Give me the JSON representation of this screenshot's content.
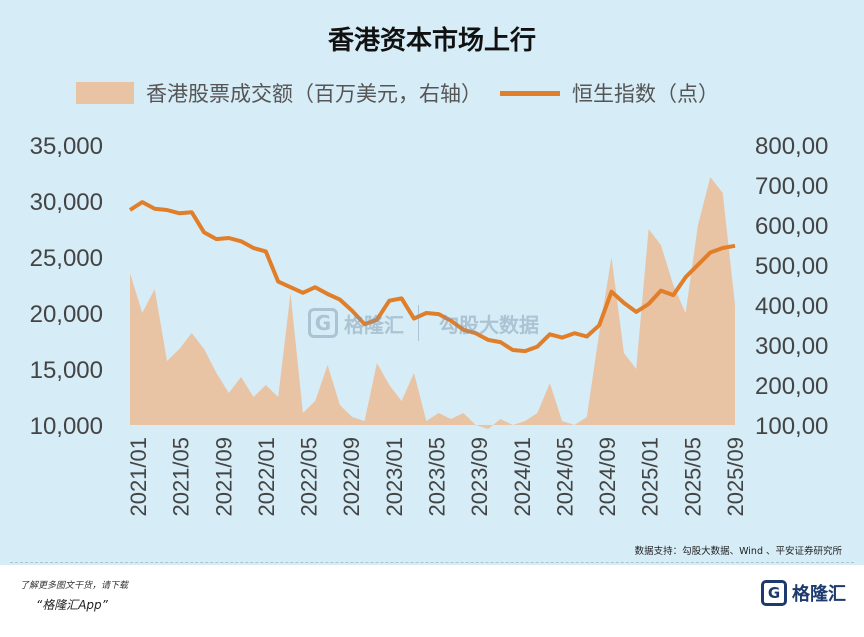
{
  "chart_data": {
    "type": "area+line",
    "title": "香港资本市场上行",
    "source": "数据支持：勾股大数据、Wind 、平安证券研究所",
    "legend_position": "top",
    "grid": false,
    "x_labels": [
      "2021/01",
      "2021/05",
      "2021/09",
      "2022/01",
      "2022/05",
      "2022/09",
      "2023/01",
      "2023/05",
      "2023/09",
      "2024/01",
      "2024/05",
      "2024/09",
      "2025/01",
      "2025/05",
      "2025/09"
    ],
    "left_axis": {
      "ticks": [
        "10,000",
        "15,000",
        "20,000",
        "25,000",
        "30,000",
        "35,000"
      ],
      "ylim": [
        10000,
        35000
      ]
    },
    "right_axis": {
      "ticks": [
        "100,00",
        "200,00",
        "300,00",
        "400,00",
        "500,00",
        "600,00",
        "700,00",
        "800,00"
      ],
      "ylim": [
        100000,
        800000
      ]
    },
    "series": [
      {
        "name": "香港股票成交额（百万美元，右轴）",
        "type": "area",
        "axis": "right",
        "color": "#e8c4a4",
        "values": [
          480000,
          380000,
          440000,
          260000,
          290000,
          330000,
          290000,
          230000,
          180000,
          220000,
          170000,
          200000,
          170000,
          430000,
          130000,
          160000,
          250000,
          150000,
          120000,
          110000,
          255000,
          200000,
          160000,
          230000,
          110000,
          130000,
          115000,
          130000,
          100000,
          90000,
          115000,
          100000,
          110000,
          130000,
          205000,
          110000,
          100000,
          120000,
          330000,
          520000,
          280000,
          240000,
          590000,
          550000,
          450000,
          380000,
          600000,
          720000,
          680000,
          400000
        ]
      },
      {
        "name": "恒生指数（点）",
        "type": "line",
        "axis": "left",
        "color": "#e07e2a",
        "values": [
          29200,
          29900,
          29300,
          29200,
          28900,
          29000,
          27200,
          26600,
          26700,
          26400,
          25800,
          25500,
          22800,
          22300,
          21800,
          22300,
          21700,
          21200,
          20200,
          19000,
          19400,
          21100,
          21300,
          19500,
          20000,
          19900,
          19300,
          18500,
          18200,
          17600,
          17400,
          16700,
          16600,
          17000,
          18100,
          17800,
          18200,
          17900,
          18900,
          21900,
          20900,
          20100,
          20800,
          22000,
          21600,
          23200,
          24300,
          25400,
          25800,
          26000
        ]
      }
    ]
  },
  "legend": {
    "area_label": "香港股票成交额（百万美元，右轴）",
    "line_label": "恒生指数（点）"
  },
  "watermark": {
    "left": "格隆汇",
    "right": "勾股大数据"
  },
  "footer": {
    "line1": "了解更多图文干货，请下载",
    "line2": "“格隆汇App”",
    "brand": "格隆汇"
  }
}
